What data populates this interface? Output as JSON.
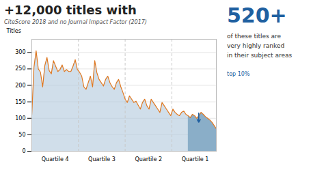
{
  "chart_data": {
    "type": "area",
    "title": "+12,000 titles with",
    "subtitle": "CiteScore 2018 and no Journal Impact Factor (2017)",
    "ylabel": "Titles",
    "annotations": [
      "520+",
      "of these titles are\nvery highly ranked\nin their subject areas",
      "top 10%"
    ],
    "x": [
      0,
      1,
      2,
      3,
      4,
      5,
      6,
      7,
      8,
      9,
      10,
      11,
      12,
      13,
      14,
      15,
      16,
      17,
      18,
      19,
      20,
      21,
      22,
      23,
      24,
      25,
      26,
      27,
      28,
      29,
      30,
      31,
      32,
      33,
      34,
      35,
      36,
      37,
      38,
      39,
      40,
      41,
      42,
      43,
      44,
      45,
      46,
      47,
      48,
      49,
      50,
      51,
      52,
      53,
      54,
      55,
      56,
      57,
      58,
      59,
      60,
      61,
      62,
      63,
      64,
      65,
      66,
      67,
      68,
      69,
      70,
      71,
      72,
      73,
      74,
      75,
      76,
      77,
      78,
      79,
      80,
      81,
      82,
      83,
      84,
      85
    ],
    "values": [
      110,
      255,
      305,
      250,
      240,
      195,
      260,
      285,
      245,
      235,
      275,
      258,
      242,
      248,
      262,
      242,
      248,
      242,
      242,
      258,
      278,
      248,
      240,
      228,
      195,
      188,
      208,
      228,
      195,
      275,
      238,
      218,
      208,
      198,
      218,
      228,
      208,
      196,
      188,
      208,
      218,
      196,
      178,
      158,
      148,
      168,
      158,
      148,
      152,
      140,
      128,
      148,
      158,
      138,
      128,
      158,
      148,
      138,
      128,
      118,
      148,
      138,
      128,
      118,
      108,
      128,
      118,
      112,
      108,
      118,
      122,
      112,
      108,
      102,
      112,
      108,
      100,
      108,
      118,
      112,
      105,
      100,
      95,
      88,
      78,
      68
    ],
    "color": "#e07820",
    "area_color": "#b0c8dc",
    "highlight": {
      "from": 72,
      "color": "#8aaec8"
    },
    "dividers": [
      21.5,
      43,
      64.5
    ],
    "divider_color": "#c8c8c8",
    "arrow": {
      "x": 76.9,
      "y_from": 116,
      "y_to": 88,
      "color": "#2060a0"
    },
    "xlim": [
      0,
      85
    ],
    "xticks": [
      {
        "value": 10.75,
        "label": "Quartile 4"
      },
      {
        "value": 32.25,
        "label": "Quartile 3"
      },
      {
        "value": 53.75,
        "label": "Quartile 2"
      },
      {
        "value": 75.25,
        "label": "Quartile 1"
      }
    ],
    "ylim": [
      0,
      340
    ],
    "yticks": [
      0,
      50,
      100,
      150,
      200,
      250,
      300
    ],
    "grid": true
  }
}
